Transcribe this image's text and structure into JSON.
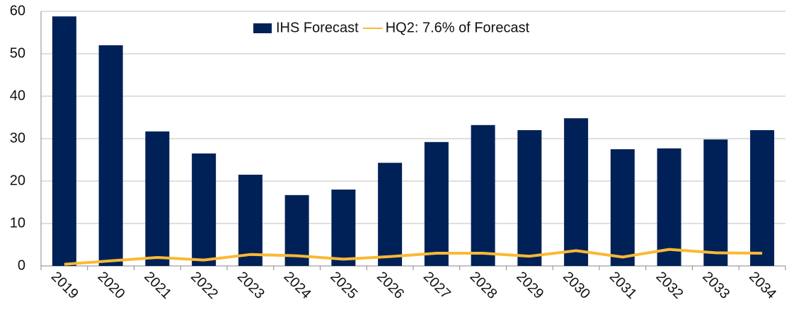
{
  "chart_data": {
    "type": "bar-line",
    "categories": [
      "2019",
      "2020",
      "2021",
      "2022",
      "2023",
      "2024",
      "2025",
      "2026",
      "2027",
      "2028",
      "2029",
      "2030",
      "2031",
      "2032",
      "2033",
      "2034"
    ],
    "series": [
      {
        "name": "IHS Forecast",
        "type": "bar",
        "color": "#002157",
        "values": [
          58.8,
          52.0,
          31.7,
          26.5,
          21.5,
          16.7,
          18.0,
          24.3,
          29.2,
          33.2,
          32.0,
          34.8,
          27.5,
          27.7,
          29.8,
          32.0
        ]
      },
      {
        "name": "HQ2: 7.6% of Forecast",
        "type": "line",
        "color": "#f9b934",
        "values": [
          0.4,
          1.2,
          2.0,
          1.4,
          2.7,
          2.4,
          1.6,
          2.2,
          3.0,
          3.0,
          2.3,
          3.6,
          2.1,
          3.9,
          3.1,
          3.0
        ]
      }
    ],
    "ylim": [
      0,
      60
    ],
    "yticks": [
      0,
      10,
      20,
      30,
      40,
      50,
      60
    ],
    "grid": true,
    "legend": "top"
  }
}
